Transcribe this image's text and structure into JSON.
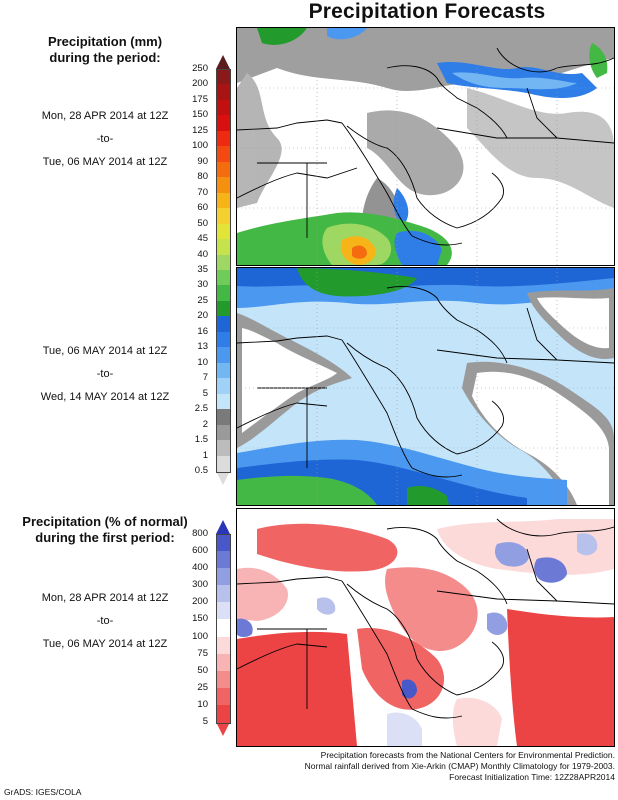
{
  "title": "Precipitation Forecasts",
  "legend_mm": {
    "header": [
      "Precipitation (mm)",
      "during the period:"
    ],
    "levels": [
      "250",
      "200",
      "175",
      "150",
      "125",
      "100",
      "90",
      "80",
      "70",
      "60",
      "50",
      "45",
      "40",
      "35",
      "30",
      "25",
      "20",
      "16",
      "13",
      "10",
      "7",
      "5",
      "2.5",
      "2",
      "1.5",
      "1",
      "0.5"
    ],
    "colors": [
      "#5a1c1c",
      "#8a1a1a",
      "#a81414",
      "#c01010",
      "#d81010",
      "#ee2a10",
      "#f24a10",
      "#f56c10",
      "#f69010",
      "#f7b418",
      "#f4d030",
      "#e2e43a",
      "#c6e24c",
      "#9ed862",
      "#6fcc58",
      "#44b844",
      "#239a2c",
      "#1e66d6",
      "#2f7ee8",
      "#4a98f0",
      "#72b6f4",
      "#a0d2f8",
      "#c4e4fa",
      "#7a7a7a",
      "#9a9a9a",
      "#bcbcbc",
      "#dcdcdc"
    ]
  },
  "legend_pct": {
    "header": [
      "Precipitation (% of normal)",
      "during the first period:"
    ],
    "levels": [
      "800",
      "600",
      "400",
      "300",
      "200",
      "150",
      "100",
      "75",
      "50",
      "25",
      "10",
      "5"
    ],
    "colors": [
      "#2a36b8",
      "#4858c8",
      "#6c7ad6",
      "#929ee2",
      "#b8c0ec",
      "#dce0f6",
      "#ffffff",
      "#fcdada",
      "#f8b4b4",
      "#f48c8c",
      "#f06464",
      "#ec4444"
    ]
  },
  "periods": {
    "p1": [
      "Mon, 28 APR 2014 at 12Z",
      "-to-",
      "Tue, 06 MAY 2014 at 12Z"
    ],
    "p2": [
      "Tue, 06 MAY 2014 at 12Z",
      "-to-",
      "Wed, 14 MAY 2014 at 12Z"
    ],
    "p3": [
      "Mon, 28 APR 2014 at 12Z",
      "-to-",
      "Tue, 06 MAY 2014 at 12Z"
    ]
  },
  "footer": [
    "Precipitation forecasts from the National Centers for Environmental Prediction.",
    "Normal rainfall derived from Xie-Arkin (CMAP) Monthly Climatology for 1979-2003.",
    "Forecast Initialization Time: 12Z28APR2014"
  ],
  "credit": "GrADS: IGES/COLA"
}
